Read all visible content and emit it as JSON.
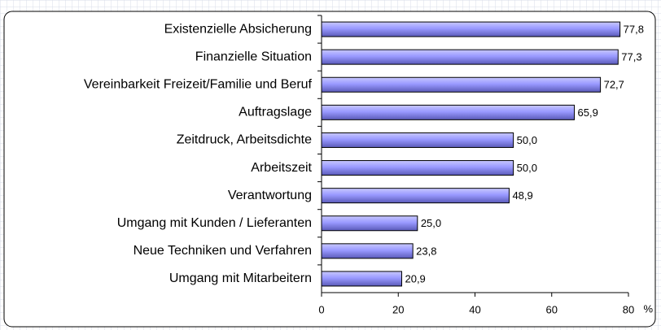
{
  "chart_data": {
    "type": "bar",
    "orientation": "horizontal",
    "categories": [
      "Existenzielle Absicherung",
      "Finanzielle Situation",
      "Vereinbarkeit Freizeit/Familie und Beruf",
      "Auftragslage",
      "Zeitdruck, Arbeitsdichte",
      "Arbeitszeit",
      "Verantwortung",
      "Umgang mit Kunden / Lieferanten",
      "Neue Techniken und Verfahren",
      "Umgang mit Mitarbeitern"
    ],
    "values": [
      77.8,
      77.3,
      72.7,
      65.9,
      50.0,
      50.0,
      48.9,
      25.0,
      23.8,
      20.9
    ],
    "value_labels": [
      "77,8",
      "77,3",
      "72,7",
      "65,9",
      "50,0",
      "50,0",
      "48,9",
      "25,0",
      "23,8",
      "20,9"
    ],
    "color": "#9999ff",
    "xlim": [
      0,
      80
    ],
    "xticks": [
      0,
      20,
      40,
      60,
      80
    ],
    "x_label": "%"
  }
}
